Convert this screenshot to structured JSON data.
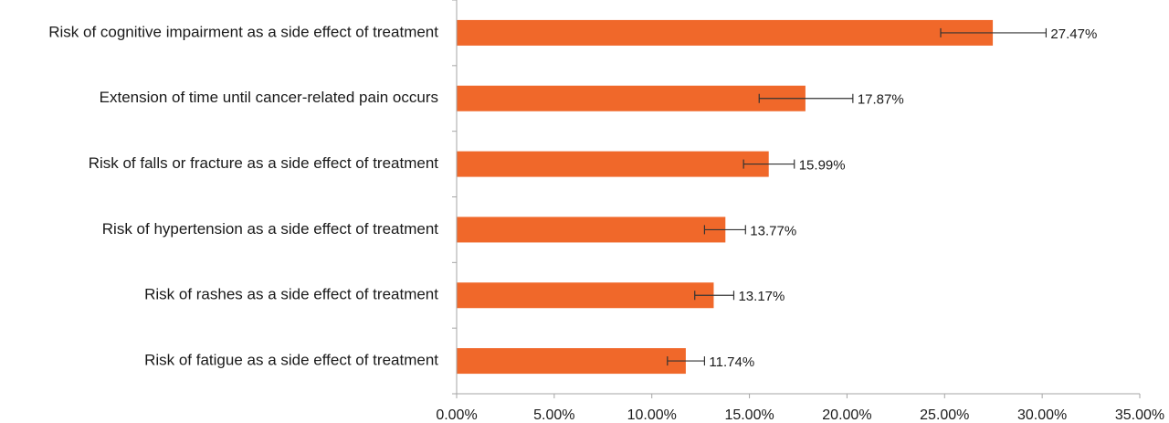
{
  "chart_data": {
    "type": "bar",
    "orientation": "horizontal",
    "categories": [
      "Risk of cognitive impairment as a side effect of treatment",
      "Extension of time until cancer-related pain occurs",
      "Risk of falls or fracture as a side effect of treatment",
      "Risk of hypertension as a side effect of treatment",
      "Risk of rashes as a side effect of treatment",
      "Risk of fatigue as a side effect of treatment"
    ],
    "values": [
      27.47,
      17.87,
      15.99,
      13.77,
      13.17,
      11.74
    ],
    "data_labels": [
      "27.47%",
      "17.87%",
      "15.99%",
      "13.77%",
      "13.17%",
      "11.74%"
    ],
    "error_low": [
      24.8,
      15.5,
      14.7,
      12.7,
      12.2,
      10.8
    ],
    "error_high": [
      30.2,
      20.3,
      17.3,
      14.8,
      14.2,
      12.7
    ],
    "xlim": [
      0,
      35
    ],
    "x_ticks": [
      0,
      5,
      10,
      15,
      20,
      25,
      30,
      35
    ],
    "x_tick_labels": [
      "0.00%",
      "5.00%",
      "10.00%",
      "15.00%",
      "20.00%",
      "25.00%",
      "30.00%",
      "35.00%"
    ],
    "title": "",
    "xlabel": "",
    "ylabel": "",
    "grid": false,
    "legend": "none",
    "bar_color": "#f0682a",
    "axis_color": "#a6a6a6",
    "error_bar_color": "#333333"
  }
}
